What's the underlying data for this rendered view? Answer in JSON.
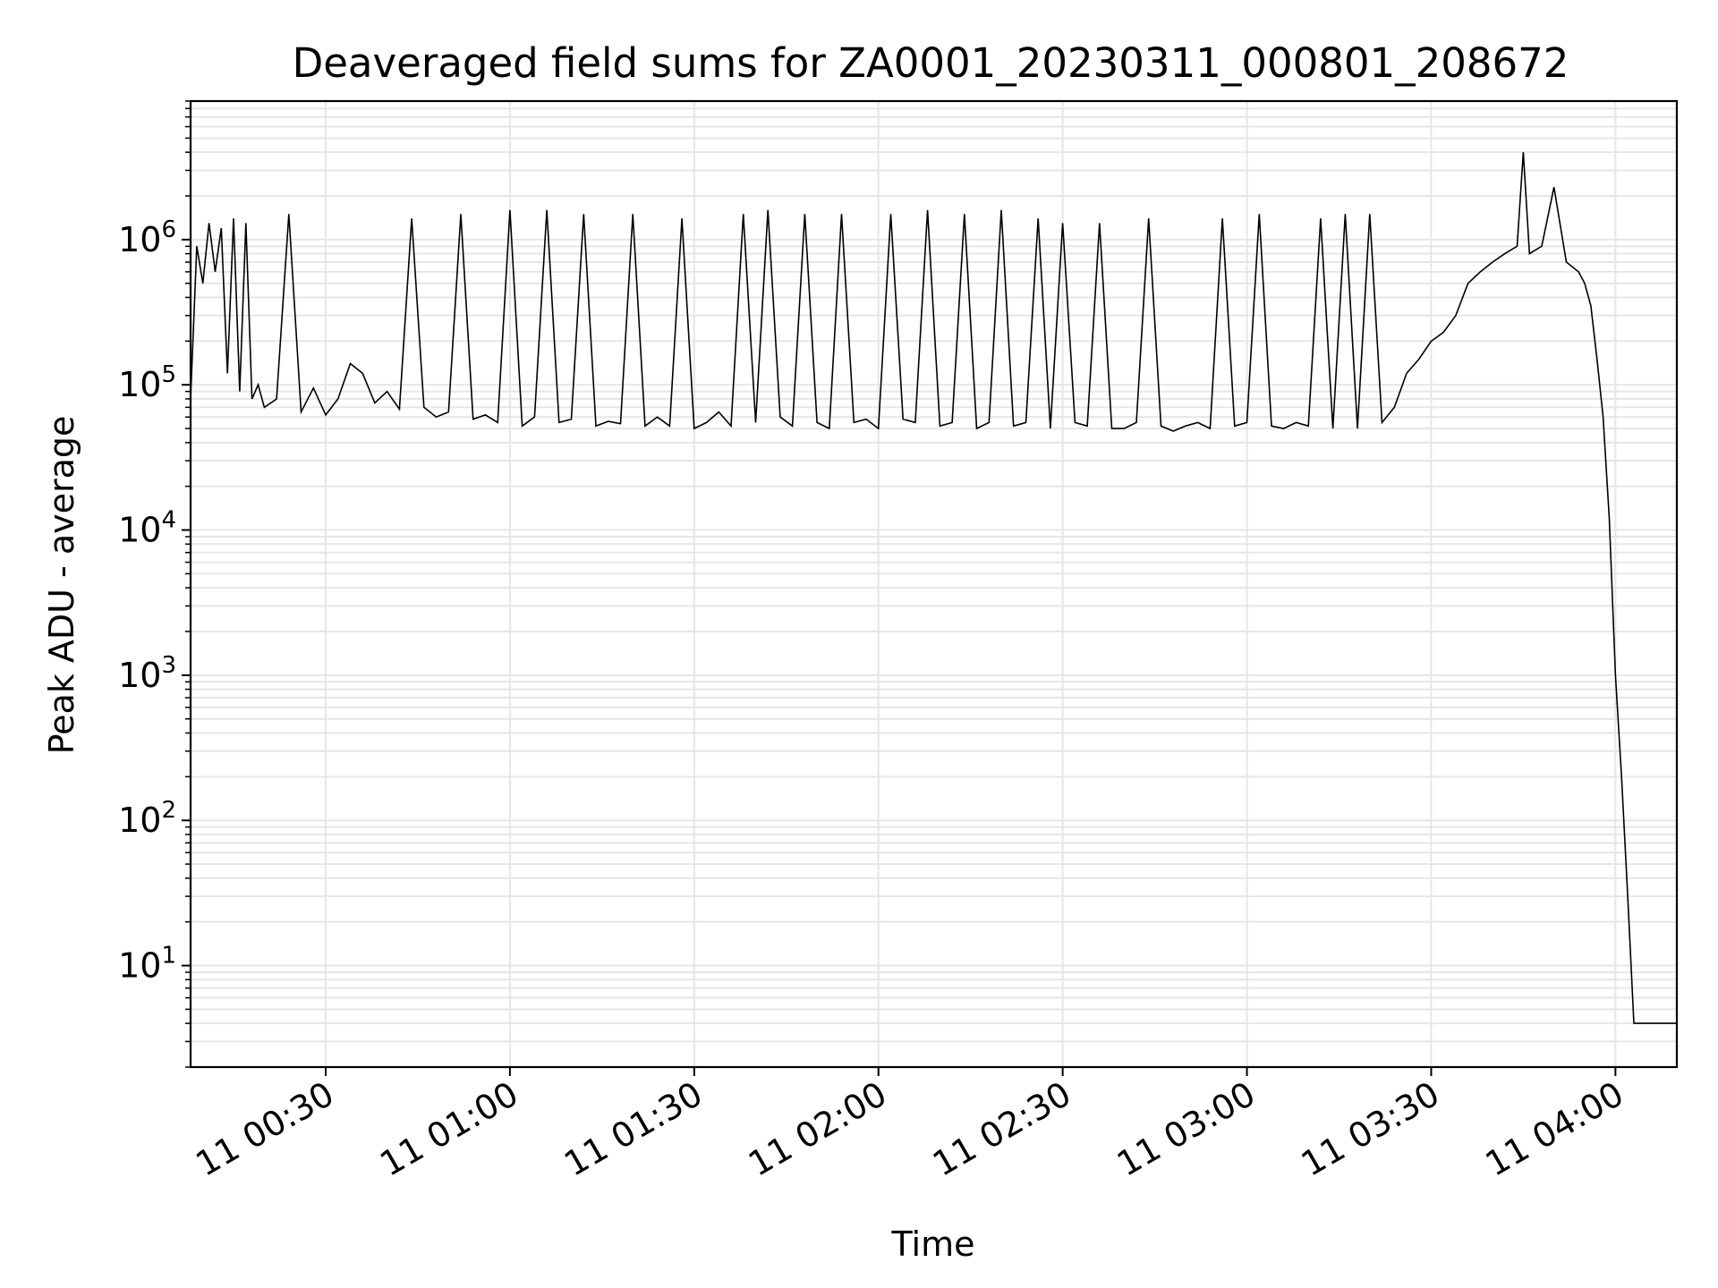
{
  "chart_data": {
    "type": "line",
    "title": "Deaveraged field sums for ZA0001_20230311_000801_208672",
    "xlabel": "Time",
    "ylabel": "Peak ADU - average",
    "x_scale": "time",
    "y_scale": "log",
    "xlim": [
      "11 00:08:00",
      "11 04:10:00"
    ],
    "ylim": [
      2,
      9000000
    ],
    "x_ticks": [
      {
        "value": "11 00:30",
        "label": "11 00:30"
      },
      {
        "value": "11 01:00",
        "label": "11 01:00"
      },
      {
        "value": "11 01:30",
        "label": "11 01:30"
      },
      {
        "value": "11 02:00",
        "label": "11 02:00"
      },
      {
        "value": "11 02:30",
        "label": "11 02:30"
      },
      {
        "value": "11 03:00",
        "label": "11 03:00"
      },
      {
        "value": "11 03:30",
        "label": "11 03:30"
      },
      {
        "value": "11 04:00",
        "label": "11 04:00"
      }
    ],
    "y_ticks": [
      {
        "value": 10,
        "base": "10",
        "exp": "1"
      },
      {
        "value": 100,
        "base": "10",
        "exp": "2"
      },
      {
        "value": 1000,
        "base": "10",
        "exp": "3"
      },
      {
        "value": 10000,
        "base": "10",
        "exp": "4"
      },
      {
        "value": 100000,
        "base": "10",
        "exp": "5"
      },
      {
        "value": 1000000,
        "base": "10",
        "exp": "6"
      }
    ],
    "grid": {
      "major": true,
      "minor_y": true
    },
    "line_color": "#000000",
    "series": [
      {
        "x": [
          "11 00:08",
          "11 00:09",
          "11 00:10",
          "11 00:11",
          "11 00:12",
          "11 00:13",
          "11 00:14",
          "11 00:15",
          "11 00:16",
          "11 00:17",
          "11 00:18",
          "11 00:19",
          "11 00:20",
          "11 00:22",
          "11 00:24",
          "11 00:26",
          "11 00:28",
          "11 00:30",
          "11 00:32",
          "11 00:34",
          "11 00:36",
          "11 00:38",
          "11 00:40",
          "11 00:42",
          "11 00:44",
          "11 00:46",
          "11 00:48",
          "11 00:50",
          "11 00:52",
          "11 00:54",
          "11 00:56",
          "11 00:58",
          "11 01:00",
          "11 01:02",
          "11 01:04",
          "11 01:06",
          "11 01:08",
          "11 01:10",
          "11 01:12",
          "11 01:14",
          "11 01:16",
          "11 01:18",
          "11 01:20",
          "11 01:22",
          "11 01:24",
          "11 01:26",
          "11 01:28",
          "11 01:30",
          "11 01:32",
          "11 01:34",
          "11 01:36",
          "11 01:38",
          "11 01:40",
          "11 01:42",
          "11 01:44",
          "11 01:46",
          "11 01:48",
          "11 01:50",
          "11 01:52",
          "11 01:54",
          "11 01:56",
          "11 01:58",
          "11 02:00",
          "11 02:02",
          "11 02:04",
          "11 02:06",
          "11 02:08",
          "11 02:10",
          "11 02:12",
          "11 02:14",
          "11 02:16",
          "11 02:18",
          "11 02:20",
          "11 02:22",
          "11 02:24",
          "11 02:26",
          "11 02:28",
          "11 02:30",
          "11 02:32",
          "11 02:34",
          "11 02:36",
          "11 02:38",
          "11 02:40",
          "11 02:42",
          "11 02:44",
          "11 02:46",
          "11 02:48",
          "11 02:50",
          "11 02:52",
          "11 02:54",
          "11 02:56",
          "11 02:58",
          "11 03:00",
          "11 03:02",
          "11 03:04",
          "11 03:06",
          "11 03:08",
          "11 03:10",
          "11 03:12",
          "11 03:14",
          "11 03:16",
          "11 03:18",
          "11 03:20",
          "11 03:22",
          "11 03:24",
          "11 03:26",
          "11 03:28",
          "11 03:30",
          "11 03:32",
          "11 03:34",
          "11 03:36",
          "11 03:38",
          "11 03:40",
          "11 03:42",
          "11 03:44",
          "11 03:45",
          "11 03:46",
          "11 03:48",
          "11 03:50",
          "11 03:52",
          "11 03:54",
          "11 03:55",
          "11 03:56",
          "11 03:57",
          "11 03:58",
          "11 03:59",
          "11 04:00",
          "11 04:01",
          "11 04:02",
          "11 04:03",
          "11 04:04",
          "11 04:05",
          "11 04:06",
          "11 04:08",
          "11 04:10"
        ],
        "y": [
          80000,
          900000,
          500000,
          1300000,
          600000,
          1200000,
          120000,
          1400000,
          90000,
          1300000,
          80000,
          100000,
          70000,
          80000,
          1500000,
          65000,
          95000,
          62000,
          80000,
          140000,
          120000,
          75000,
          90000,
          68000,
          1400000,
          70000,
          60000,
          65000,
          1500000,
          58000,
          62000,
          55000,
          1600000,
          52000,
          60000,
          1600000,
          55000,
          58000,
          1500000,
          52000,
          56000,
          54000,
          1500000,
          52000,
          60000,
          52000,
          1400000,
          50000,
          55000,
          65000,
          52000,
          1500000,
          55000,
          1600000,
          60000,
          52000,
          1500000,
          55000,
          50000,
          1500000,
          55000,
          58000,
          50000,
          1500000,
          58000,
          55000,
          1600000,
          52000,
          55000,
          1500000,
          50000,
          55000,
          1600000,
          52000,
          55000,
          1400000,
          50000,
          1300000,
          55000,
          52000,
          1300000,
          50000,
          50000,
          55000,
          1400000,
          52000,
          48000,
          52000,
          55000,
          50000,
          1400000,
          52000,
          55000,
          1500000,
          52000,
          50000,
          55000,
          52000,
          1400000,
          50000,
          1500000,
          50000,
          1500000,
          55000,
          70000,
          120000,
          150000,
          200000,
          230000,
          300000,
          500000,
          600000,
          700000,
          800000,
          900000,
          4000000,
          800000,
          900000,
          2300000,
          700000,
          600000,
          500000,
          350000,
          150000,
          60000,
          12000,
          1000,
          200,
          30,
          4,
          4,
          4,
          4,
          4,
          4
        ]
      }
    ]
  }
}
